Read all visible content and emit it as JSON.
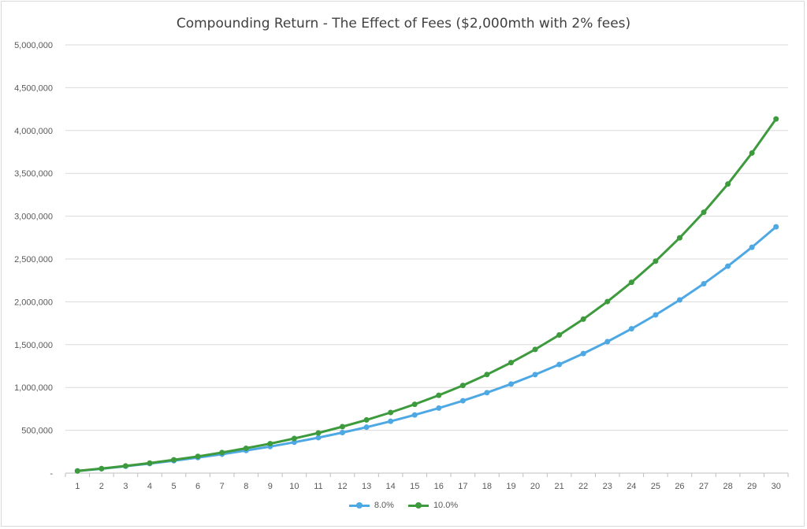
{
  "chart_data": {
    "type": "line",
    "title": "Compounding Return - The Effect of Fees ($2,000mth with 2% fees)",
    "xlabel": "",
    "ylabel": "",
    "ylim": [
      0,
      5000000
    ],
    "yticks": [
      0,
      500000,
      1000000,
      1500000,
      2000000,
      2500000,
      3000000,
      3500000,
      4000000,
      4500000,
      5000000
    ],
    "ytick_labels": [
      "-",
      "500,000",
      "1,000,000",
      "1,500,000",
      "2,000,000",
      "2,500,000",
      "3,000,000",
      "3,500,000",
      "4,000,000",
      "4,500,000",
      "5,000,000"
    ],
    "x": [
      1,
      2,
      3,
      4,
      5,
      6,
      7,
      8,
      9,
      10,
      11,
      12,
      13,
      14,
      15,
      16,
      17,
      18,
      19,
      20,
      21,
      22,
      23,
      24,
      25,
      26,
      27,
      28,
      29,
      30
    ],
    "grid": true,
    "legend_position": "bottom",
    "series": [
      {
        "name": "8.0%",
        "color": "#4ea8e4",
        "values": [
          25000,
          51000,
          80000,
          111000,
          145000,
          181000,
          221000,
          264000,
          310000,
          360000,
          414000,
          473000,
          536000,
          605000,
          679000,
          759000,
          845000,
          939000,
          1040000,
          1150000,
          1268000,
          1396000,
          1535000,
          1685000,
          1847000,
          2022000,
          2211000,
          2416000,
          2637000,
          2876000
        ]
      },
      {
        "name": "10.0%",
        "color": "#3d9a3d",
        "values": [
          25000,
          53000,
          84000,
          117000,
          155000,
          195000,
          240000,
          290000,
          344000,
          404000,
          469000,
          542000,
          621000,
          708000,
          803000,
          909000,
          1024000,
          1151000,
          1290000,
          1444000,
          1613000,
          1798000,
          2003000,
          2228000,
          2475000,
          2747000,
          3046000,
          3375000,
          3737000,
          4135000
        ]
      }
    ]
  }
}
